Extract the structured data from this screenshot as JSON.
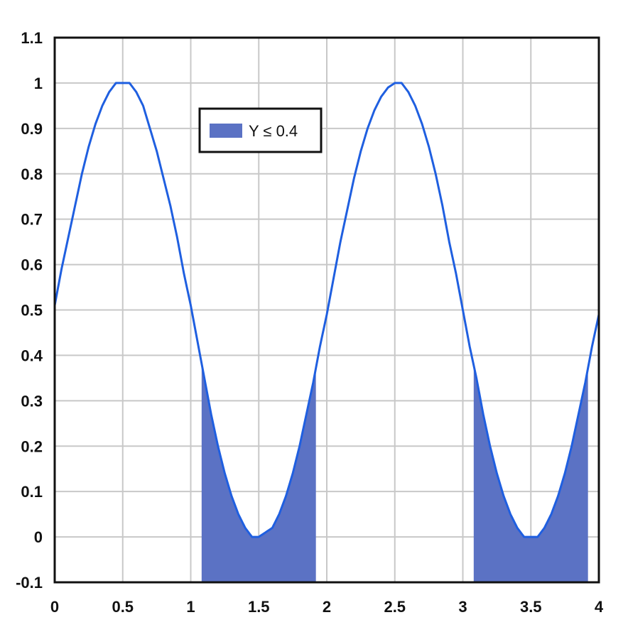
{
  "chart_data": {
    "type": "area",
    "title": "",
    "xlabel": "",
    "ylabel": "",
    "xlim": [
      0,
      4
    ],
    "ylim": [
      -0.1,
      1.1
    ],
    "grid": true,
    "legend_position": "top-left",
    "x_ticks": [
      {
        "value": 0,
        "label": "0"
      },
      {
        "value": 0.5,
        "label": "0.5"
      },
      {
        "value": 1,
        "label": "1"
      },
      {
        "value": 1.5,
        "label": "1.5"
      },
      {
        "value": 2,
        "label": "2"
      },
      {
        "value": 2.5,
        "label": "2.5"
      },
      {
        "value": 3,
        "label": "3"
      },
      {
        "value": 3.5,
        "label": "3.5"
      },
      {
        "value": 4,
        "label": "4"
      }
    ],
    "y_ticks": [
      {
        "value": 1.1,
        "label": "1.1"
      },
      {
        "value": 1,
        "label": "1"
      },
      {
        "value": 0.9,
        "label": "0.9"
      },
      {
        "value": 0.8,
        "label": "0.8"
      },
      {
        "value": 0.7,
        "label": "0.7"
      },
      {
        "value": 0.6,
        "label": "0.6"
      },
      {
        "value": 0.5,
        "label": "0.5"
      },
      {
        "value": 0.4,
        "label": "0.4"
      },
      {
        "value": 0.3,
        "label": "0.3"
      },
      {
        "value": 0.2,
        "label": "0.2"
      },
      {
        "value": 0.1,
        "label": "0.1"
      },
      {
        "value": 0,
        "label": "0"
      },
      {
        "value": -0.1,
        "label": "-0.1"
      }
    ],
    "series": [
      {
        "kind": "line",
        "color": "#1f5fe0",
        "x": [
          0,
          0.05,
          0.1,
          0.15,
          0.2,
          0.25,
          0.3,
          0.35,
          0.4,
          0.45,
          0.5,
          0.55,
          0.6,
          0.65,
          0.7,
          0.75,
          0.8,
          0.85,
          0.9,
          0.95,
          1.0,
          1.05,
          1.1,
          1.15,
          1.2,
          1.25,
          1.3,
          1.35,
          1.4,
          1.45,
          1.5,
          1.55,
          1.6,
          1.65,
          1.7,
          1.75,
          1.8,
          1.85,
          1.9,
          1.95,
          2.0,
          2.05,
          2.1,
          2.15,
          2.2,
          2.25,
          2.3,
          2.35,
          2.4,
          2.45,
          2.5,
          2.55,
          2.6,
          2.65,
          2.7,
          2.75,
          2.8,
          2.85,
          2.9,
          2.95,
          3.0,
          3.05,
          3.1,
          3.15,
          3.2,
          3.25,
          3.3,
          3.35,
          3.4,
          3.45,
          3.5,
          3.55,
          3.6,
          3.65,
          3.7,
          3.75,
          3.8,
          3.85,
          3.9,
          3.95,
          4.0
        ],
        "y": [
          0.51,
          0.59,
          0.66,
          0.73,
          0.8,
          0.86,
          0.91,
          0.95,
          0.98,
          1.0,
          1.0,
          1.0,
          0.98,
          0.95,
          0.9,
          0.85,
          0.79,
          0.73,
          0.66,
          0.58,
          0.51,
          0.43,
          0.35,
          0.27,
          0.2,
          0.14,
          0.09,
          0.05,
          0.02,
          0.0,
          0.0,
          0.01,
          0.02,
          0.05,
          0.09,
          0.14,
          0.2,
          0.27,
          0.34,
          0.42,
          0.49,
          0.57,
          0.65,
          0.72,
          0.79,
          0.85,
          0.9,
          0.94,
          0.97,
          0.99,
          1.0,
          1.0,
          0.98,
          0.95,
          0.91,
          0.86,
          0.8,
          0.73,
          0.65,
          0.58,
          0.5,
          0.42,
          0.35,
          0.27,
          0.2,
          0.14,
          0.09,
          0.05,
          0.02,
          0.0,
          0.0,
          0.0,
          0.02,
          0.05,
          0.09,
          0.14,
          0.2,
          0.27,
          0.34,
          0.42,
          0.49
        ]
      },
      {
        "name": "Y ≤ 0.4",
        "kind": "area",
        "color": "#5b72c4",
        "threshold": 0.4,
        "regions": [
          [
            1.08,
            1.92
          ],
          [
            3.08,
            3.92
          ]
        ]
      }
    ]
  }
}
